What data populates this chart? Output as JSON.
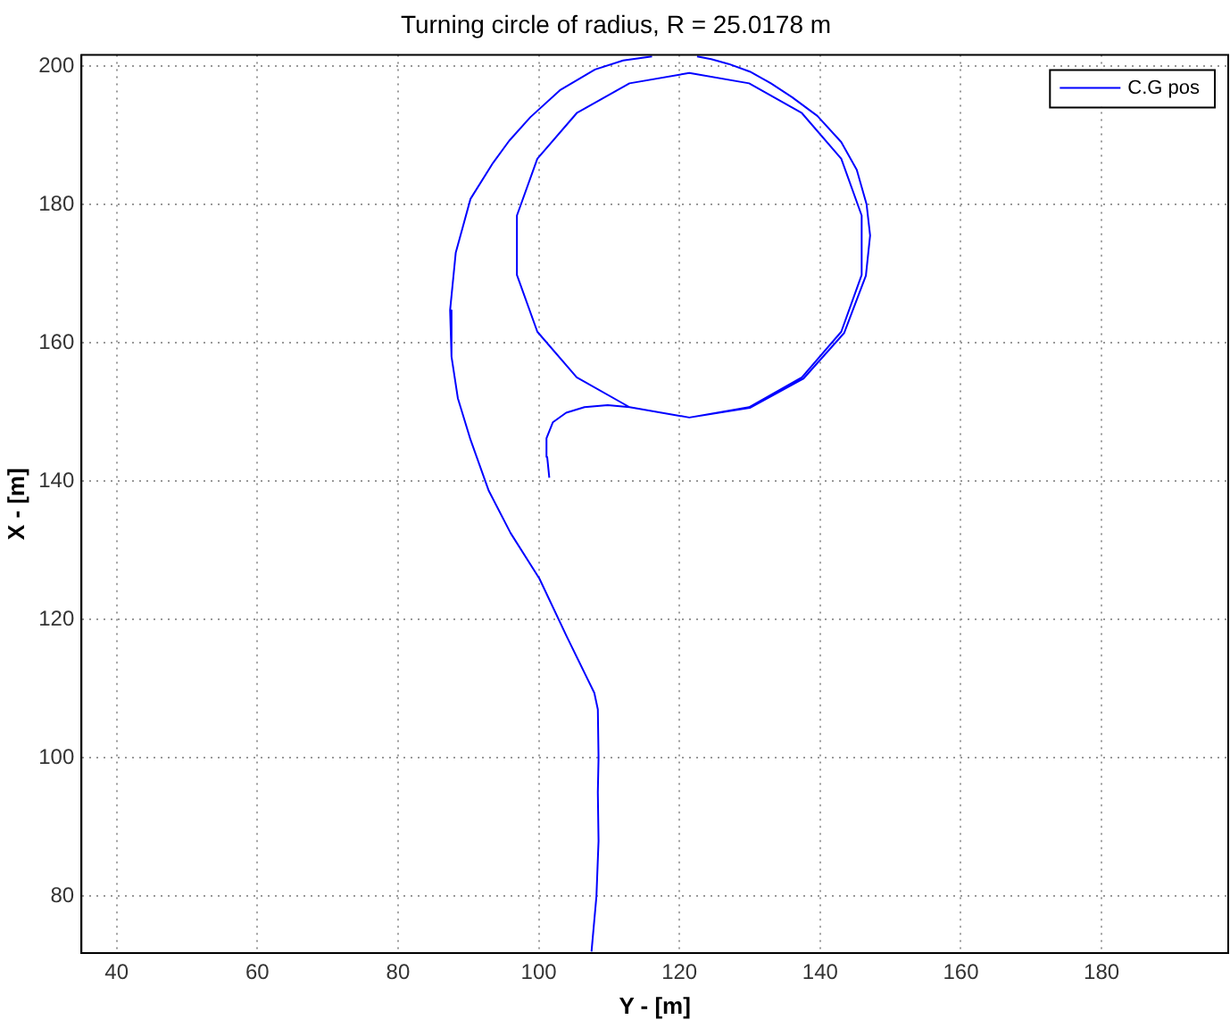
{
  "chart_data": {
    "type": "line",
    "title": "Turning circle of radius, R = 25.0178 m",
    "xlabel": "Y - [m]",
    "ylabel": "X - [m]",
    "x": [
      101.5,
      101.2,
      101.1,
      102.0,
      103.9,
      106.5,
      109.8,
      112.9,
      121.4,
      129.9,
      137.4,
      143.0,
      145.9,
      145.9,
      143.0,
      137.4,
      129.9,
      121.4,
      112.9,
      105.4,
      99.8,
      96.9,
      96.9,
      99.8,
      105.4,
      112.9,
      121.4,
      130.0,
      137.6,
      143.4,
      146.5,
      147.1,
      146.6,
      145.2,
      143.0,
      139.6,
      136.0,
      133.0,
      130.0,
      127.0,
      124.5,
      122.5,
      null,
      116.1,
      112.0,
      108.0,
      103.0,
      98.8,
      95.8,
      93.5,
      90.3,
      88.2,
      87.4,
      87.6,
      88.5,
      90.3,
      92.9,
      96.0,
      100.1,
      104.0,
      107.9,
      108.4,
      108.5,
      108.4,
      108.5,
      108.2,
      107.5
    ],
    "series": [
      {
        "name": "C.G pos",
        "color": "#0000ff",
        "values": [
          140.5,
          143.5,
          146.2,
          148.5,
          149.9,
          150.7,
          151.0,
          150.7,
          149.2,
          150.7,
          155.0,
          161.6,
          169.8,
          178.4,
          186.6,
          193.2,
          197.5,
          199.0,
          197.5,
          193.2,
          186.6,
          178.4,
          169.8,
          161.6,
          155.0,
          150.7,
          149.2,
          150.6,
          154.8,
          161.4,
          169.7,
          175.5,
          180.0,
          185.0,
          189.0,
          192.8,
          195.5,
          197.5,
          199.2,
          200.3,
          201.0,
          201.4,
          null,
          201.4,
          200.8,
          199.5,
          196.5,
          192.6,
          189.2,
          186.0,
          180.8,
          173.0,
          164.7,
          158.0,
          152.0,
          146.0,
          138.6,
          132.5,
          125.9,
          117.5,
          109.4,
          107.0,
          100.0,
          95.0,
          88.0,
          80.0,
          72.0
        ]
      }
    ],
    "xlim": [
      35,
      198
    ],
    "ylim": [
      71.8,
      201.6
    ],
    "xticks": [
      40,
      60,
      80,
      100,
      120,
      140,
      160,
      180
    ],
    "yticks": [
      80,
      100,
      120,
      140,
      160,
      180,
      200
    ],
    "grid": true,
    "legend": "top right",
    "marker": "none",
    "line_style": "solid"
  }
}
